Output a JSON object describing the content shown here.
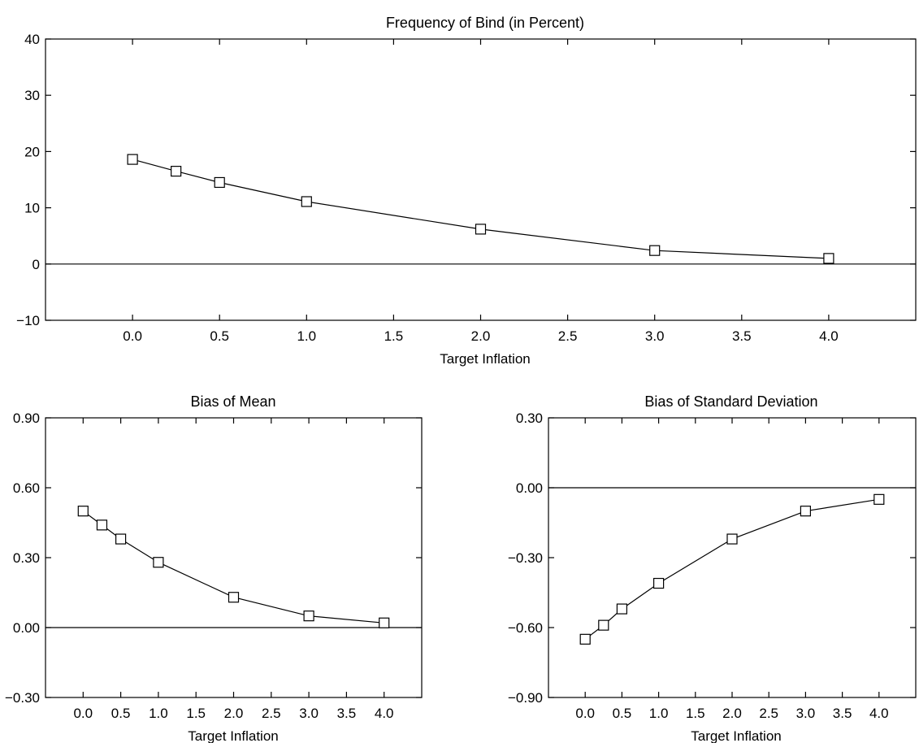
{
  "chart_data": [
    {
      "type": "line",
      "title": "Frequency of Bind (in Percent)",
      "xlabel": "Target Inflation",
      "ylabel": "",
      "x": [
        0.0,
        0.25,
        0.5,
        1.0,
        2.0,
        3.0,
        4.0
      ],
      "series": [
        {
          "values": [
            18.6,
            16.5,
            14.5,
            11.1,
            6.2,
            2.4,
            1.0
          ]
        }
      ],
      "xlim": [
        -0.5,
        4.5
      ],
      "ylim": [
        -10,
        40
      ],
      "xticks": [
        "0.0",
        "0.5",
        "1.0",
        "1.5",
        "2.0",
        "2.5",
        "3.0",
        "3.5",
        "4.0"
      ],
      "yticks": [
        "-10",
        "0",
        "10",
        "20",
        "30",
        "40"
      ],
      "reference_line_y": 0,
      "marker": "square",
      "grid": false
    },
    {
      "type": "line",
      "title": "Bias of Mean",
      "xlabel": "Target Inflation",
      "ylabel": "",
      "x": [
        0.0,
        0.25,
        0.5,
        1.0,
        2.0,
        3.0,
        4.0
      ],
      "series": [
        {
          "values": [
            0.5,
            0.44,
            0.38,
            0.28,
            0.13,
            0.05,
            0.02
          ]
        }
      ],
      "xlim": [
        -0.5,
        4.5
      ],
      "ylim": [
        -0.3,
        0.9
      ],
      "xticks": [
        "0.0",
        "0.5",
        "1.0",
        "1.5",
        "2.0",
        "2.5",
        "3.0",
        "3.5",
        "4.0"
      ],
      "yticks": [
        "-0.30",
        "0.00",
        "0.30",
        "0.60",
        "0.90"
      ],
      "reference_line_y": 0,
      "marker": "square",
      "grid": false
    },
    {
      "type": "line",
      "title": "Bias of Standard Deviation",
      "xlabel": "Target Inflation",
      "ylabel": "",
      "x": [
        0.0,
        0.25,
        0.5,
        1.0,
        2.0,
        3.0,
        4.0
      ],
      "series": [
        {
          "values": [
            -0.65,
            -0.59,
            -0.52,
            -0.41,
            -0.22,
            -0.1,
            -0.05
          ]
        }
      ],
      "xlim": [
        -0.5,
        4.5
      ],
      "ylim": [
        -0.9,
        0.3
      ],
      "xticks": [
        "0.0",
        "0.5",
        "1.0",
        "1.5",
        "2.0",
        "2.5",
        "3.0",
        "3.5",
        "4.0"
      ],
      "yticks": [
        "-0.90",
        "-0.60",
        "-0.30",
        "0.00",
        "0.30"
      ],
      "reference_line_y": 0,
      "marker": "square",
      "grid": false
    }
  ]
}
